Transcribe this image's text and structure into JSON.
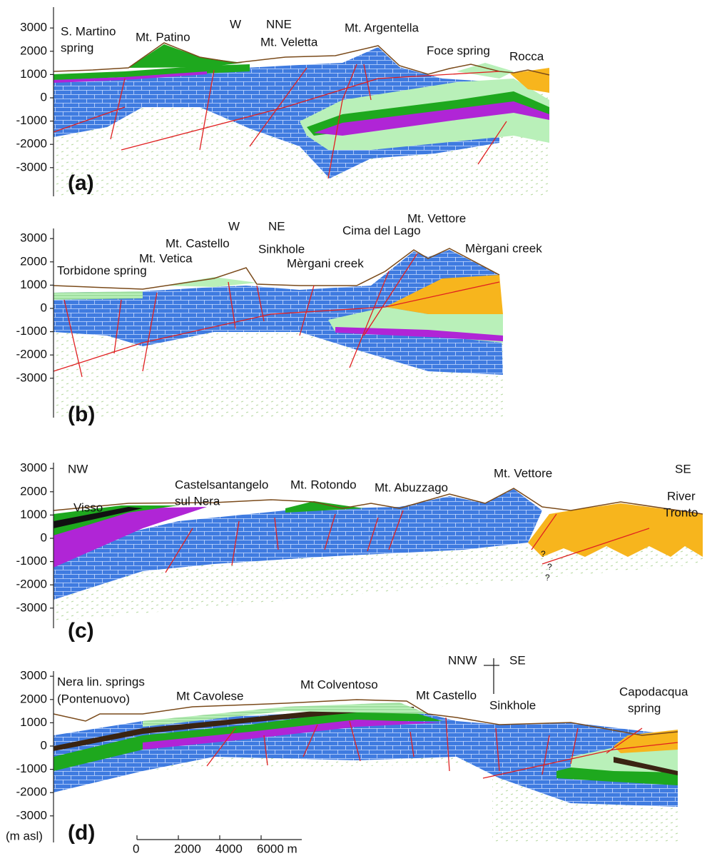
{
  "panels": [
    {
      "label": "(a)",
      "yticks": [
        3000,
        2000,
        1000,
        0,
        -1000,
        -2000,
        -3000
      ],
      "annotations": [
        "S. Martino",
        "spring",
        "Mt. Patino",
        "W",
        "NNE",
        "Mt. Veletta",
        "Mt. Argentella",
        "Foce spring",
        "Rocca"
      ]
    },
    {
      "label": "(b)",
      "yticks": [
        3000,
        2000,
        1000,
        0,
        -1000,
        -2000,
        -3000
      ],
      "annotations": [
        "W",
        "NE",
        "Mt. Castello",
        "Mt. Vetica",
        "Torbidone spring",
        "Sinkhole",
        "Mèrgani creek",
        "Cima del Lago",
        "Mt. Vettore",
        "Mèrgani creek"
      ]
    },
    {
      "label": "(c)",
      "yticks": [
        3000,
        2000,
        1000,
        0,
        -1000,
        -2000,
        -3000
      ],
      "annotations": [
        "NW",
        "SE",
        "Visso",
        "Castelsantangelo",
        "sul Nera",
        "Mt. Rotondo",
        "Mt. Abuzzago",
        "Mt. Vettore",
        "River",
        "Tronto",
        "?",
        "?",
        "?"
      ]
    },
    {
      "label": "(d)",
      "yticks": [
        3000,
        2000,
        1000,
        0,
        -1000,
        -2000,
        -3000
      ],
      "annotations": [
        "Nera lin. springs",
        "(Pontenuovo)",
        "Mt Cavolese",
        "Mt Colventoso",
        "Mt Castello",
        "NNW",
        "SE",
        "Sinkhole",
        "Capodacqua",
        "spring"
      ]
    }
  ],
  "y_unit": "(m asl)",
  "scale_bar": {
    "ticks": [
      0,
      2000,
      4000,
      {
        "value": 6000,
        "label": "6000 m"
      }
    ]
  }
}
